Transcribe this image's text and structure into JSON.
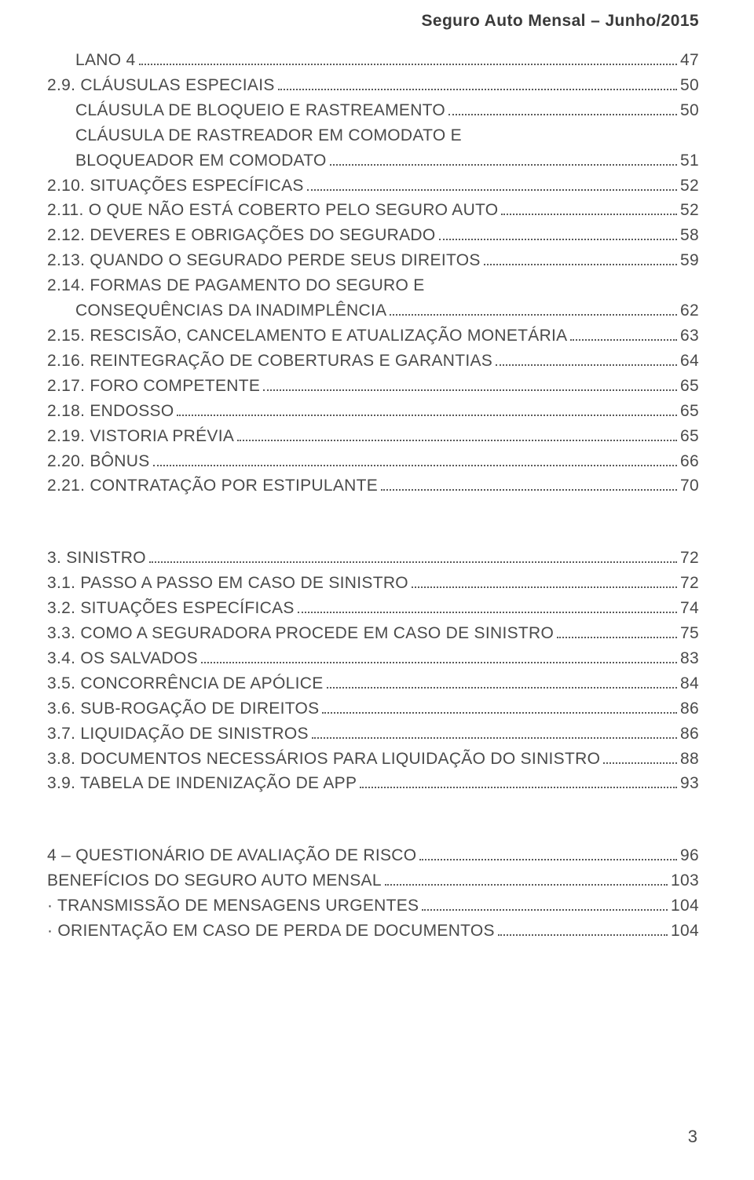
{
  "header": "Seguro Auto Mensal – Junho/2015",
  "page_number": "3",
  "typography": {
    "font_family": "Arial",
    "body_fontsize_pt": 16,
    "header_fontsize_pt": 16,
    "text_color": "#4a4a4a",
    "header_color": "#3a3a3a",
    "background_color": "#ffffff",
    "leader_color": "#5a5a5a",
    "leader_style": "dotted"
  },
  "sections": [
    {
      "entries": [
        {
          "indent": 1,
          "label": "LANO 4",
          "page": "47"
        },
        {
          "indent": 0,
          "label": "2.9. CLÁUSULAS ESPECIAIS",
          "page": "50"
        },
        {
          "indent": 1,
          "label": "CLÁUSULA DE BLOQUEIO E RASTREAMENTO",
          "page": "50"
        },
        {
          "indent": 1,
          "label": "CLÁUSULA DE RASTREADOR EM COMODATO E",
          "cont": "BLOQUEADOR EM COMODATO",
          "page": "51"
        },
        {
          "indent": 0,
          "label": "2.10. SITUAÇÕES  ESPECÍFICAS",
          "page": "52"
        },
        {
          "indent": 0,
          "label": "2.11. O QUE NÃO ESTÁ COBERTO PELO SEGURO AUTO",
          "page": "52"
        },
        {
          "indent": 0,
          "label": "2.12. DEVERES E OBRIGAÇÕES DO SEGURADO",
          "page": "58"
        },
        {
          "indent": 0,
          "label": "2.13. QUANDO O SEGURADO PERDE SEUS DIREITOS",
          "page": "59"
        },
        {
          "indent": 0,
          "label": "2.14. FORMAS DE PAGAMENTO DO SEGURO E",
          "cont": "CONSEQUÊNCIAS DA INADIMPLÊNCIA",
          "cont_indent": 1,
          "page": "62"
        },
        {
          "indent": 0,
          "label": "2.15. RESCISÃO, CANCELAMENTO E ATUALIZAÇÃO MONETÁRIA",
          "page": "63"
        },
        {
          "indent": 0,
          "label": "2.16. REINTEGRAÇÃO DE COBERTURAS E GARANTIAS",
          "page": "64"
        },
        {
          "indent": 0,
          "label": "2.17. FORO COMPETENTE",
          "page": "65"
        },
        {
          "indent": 0,
          "label": "2.18. ENDOSSO",
          "page": "65"
        },
        {
          "indent": 0,
          "label": "2.19. VISTORIA PRÉVIA",
          "page": "65"
        },
        {
          "indent": 0,
          "label": "2.20. BÔNUS",
          "page": "66"
        },
        {
          "indent": 0,
          "label": "2.21. CONTRATAÇÃO POR ESTIPULANTE",
          "page": "70"
        }
      ]
    },
    {
      "entries": [
        {
          "indent": 0,
          "label": "3. SINISTRO",
          "page": "72"
        },
        {
          "indent": 0,
          "label": "3.1. PASSO A PASSO EM CASO DE SINISTRO",
          "page": "72"
        },
        {
          "indent": 0,
          "label": "3.2. SITUAÇÕES ESPECÍFICAS",
          "page": "74"
        },
        {
          "indent": 0,
          "label": "3.3. COMO A SEGURADORA PROCEDE EM CASO DE SINISTRO",
          "page": "75"
        },
        {
          "indent": 0,
          "label": "3.4. OS SALVADOS",
          "page": "83"
        },
        {
          "indent": 0,
          "label": "3.5. CONCORRÊNCIA DE APÓLICE",
          "page": "84"
        },
        {
          "indent": 0,
          "label": "3.6. SUB-ROGAÇÃO DE DIREITOS",
          "page": "86"
        },
        {
          "indent": 0,
          "label": "3.7. LIQUIDAÇÃO DE SINISTROS",
          "page": "86"
        },
        {
          "indent": 0,
          "label": "3.8. DOCUMENTOS NECESSÁRIOS PARA LIQUIDAÇÃO DO SINISTRO",
          "page": "88"
        },
        {
          "indent": 0,
          "label": "3.9. TABELA DE INDENIZAÇÃO DE APP",
          "page": "93"
        }
      ]
    },
    {
      "entries": [
        {
          "indent": 0,
          "label": "4 – QUESTIONÁRIO DE AVALIAÇÃO DE RISCO",
          "page": "96"
        },
        {
          "indent": 0,
          "label": "BENEFÍCIOS DO SEGURO AUTO MENSAL",
          "page": "103"
        },
        {
          "indent": 0,
          "label": "· TRANSMISSÃO DE MENSAGENS URGENTES",
          "page": "104"
        },
        {
          "indent": 0,
          "label": "· ORIENTAÇÃO EM CASO DE PERDA DE DOCUMENTOS",
          "page": "104"
        }
      ]
    }
  ]
}
